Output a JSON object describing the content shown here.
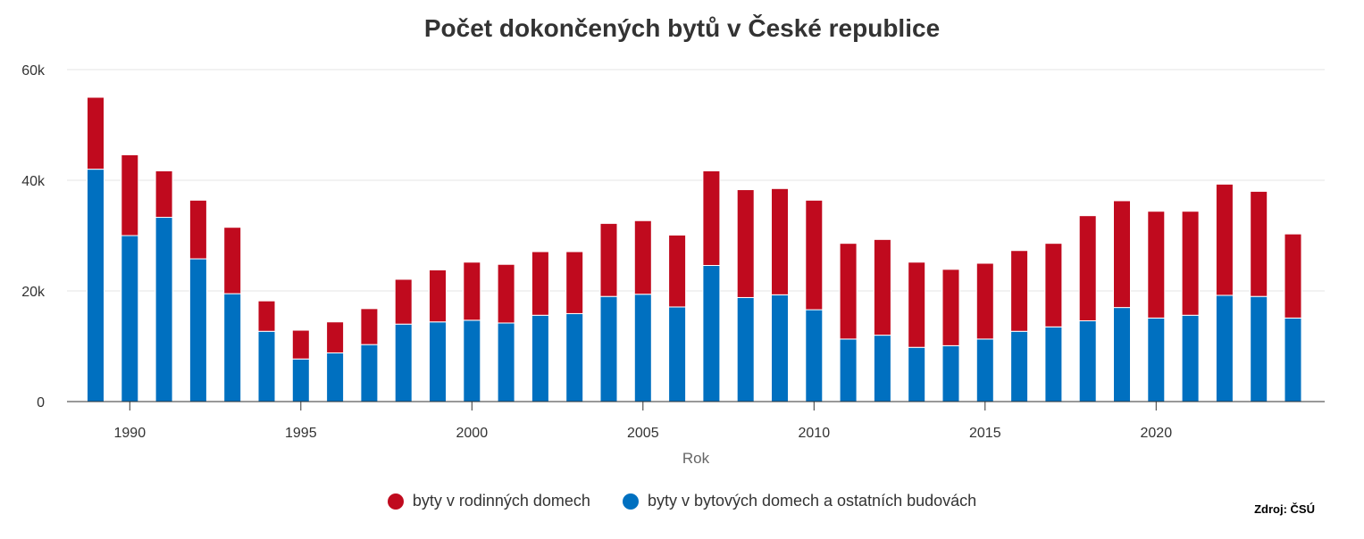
{
  "chart_data": {
    "type": "bar",
    "stacked": true,
    "title": "Počet dokončených bytů v České republice",
    "xlabel": "Rok",
    "ylabel": "",
    "ylim": [
      0,
      60000
    ],
    "yticks": [
      0,
      20000,
      40000,
      60000
    ],
    "ytick_labels": [
      "0",
      "20k",
      "40k",
      "60k"
    ],
    "xticks": [
      1990,
      1995,
      2000,
      2005,
      2010,
      2015,
      2020
    ],
    "xtick_labels": [
      "1990",
      "1995",
      "2000",
      "2005",
      "2010",
      "2015",
      "2020"
    ],
    "grid": true,
    "legend_position": "bottom",
    "source": "Zdroj: ČSÚ",
    "categories": [
      1989,
      1990,
      1991,
      1992,
      1993,
      1994,
      1995,
      1996,
      1997,
      1998,
      1999,
      2000,
      2001,
      2002,
      2003,
      2004,
      2005,
      2006,
      2007,
      2008,
      2009,
      2010,
      2011,
      2012,
      2013,
      2014,
      2015,
      2016,
      2017,
      2018,
      2019,
      2020,
      2021,
      2022,
      2023,
      2024
    ],
    "series": [
      {
        "name": "byty v bytových domech a ostatních budovách",
        "color": "#0070c0",
        "values": [
          42000,
          30000,
          33300,
          25800,
          19500,
          12700,
          7700,
          8800,
          10300,
          14000,
          14400,
          14700,
          14200,
          15600,
          15900,
          19000,
          19400,
          17100,
          24600,
          18800,
          19300,
          16600,
          11300,
          12000,
          9800,
          10100,
          11300,
          12700,
          13500,
          14600,
          17000,
          15100,
          15600,
          19200,
          19000,
          15100
        ]
      },
      {
        "name": "byty v rodinných domech",
        "color": "#c00a1e",
        "values": [
          13000,
          14600,
          8400,
          10600,
          12000,
          5500,
          5200,
          5600,
          6500,
          8100,
          9400,
          10500,
          10600,
          11500,
          11200,
          13200,
          13300,
          13000,
          17100,
          19500,
          19200,
          19800,
          17300,
          17300,
          15400,
          13800,
          13700,
          14600,
          15100,
          19000,
          19300,
          19300,
          18800,
          20100,
          19000,
          15200
        ]
      }
    ],
    "legend_order": [
      1,
      0
    ]
  }
}
